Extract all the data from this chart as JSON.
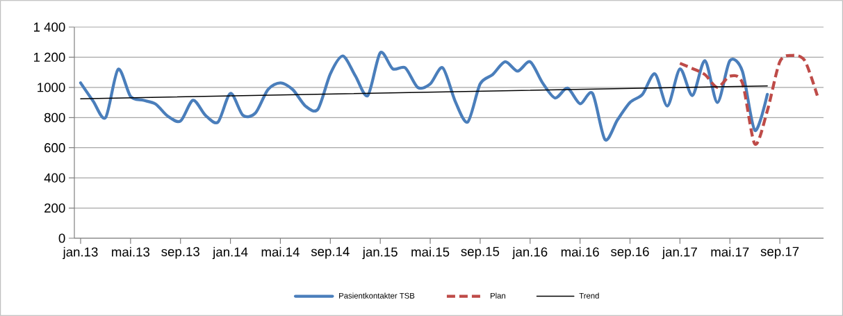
{
  "chart_data": {
    "type": "line",
    "categories": [
      "jan.13",
      null,
      null,
      null,
      "mai.13",
      null,
      null,
      null,
      "sep.13",
      null,
      null,
      null,
      "jan.14",
      null,
      null,
      null,
      "mai.14",
      null,
      null,
      null,
      "sep.14",
      null,
      null,
      null,
      "jan.15",
      null,
      null,
      null,
      "mai.15",
      null,
      null,
      null,
      "sep.15",
      null,
      null,
      null,
      "jan.16",
      null,
      null,
      null,
      "mai.16",
      null,
      null,
      null,
      "sep.16",
      null,
      null,
      null,
      "jan.17",
      null,
      null,
      null,
      "mai.17",
      null,
      null,
      null,
      "sep.17",
      null,
      null,
      null
    ],
    "series": [
      {
        "name": "Pasientkontakter TSB",
        "color": "#4a7ebb",
        "line_style": "solid",
        "values": [
          1030,
          910,
          800,
          1120,
          940,
          915,
          890,
          808,
          777,
          915,
          815,
          770,
          960,
          815,
          830,
          985,
          1030,
          985,
          877,
          855,
          1090,
          1208,
          1077,
          946,
          1230,
          1123,
          1130,
          1000,
          1023,
          1130,
          908,
          770,
          1023,
          1085,
          1170,
          1108,
          1170,
          1030,
          930,
          995,
          892,
          960,
          654,
          785,
          900,
          954,
          1090,
          877,
          1123,
          946,
          1177,
          900,
          1177,
          1108,
          715,
          954,
          null,
          null,
          null,
          null
        ]
      },
      {
        "name": "Plan",
        "color": "#be4b48",
        "line_style": "dashed",
        "values": [
          null,
          null,
          null,
          null,
          null,
          null,
          null,
          null,
          null,
          null,
          null,
          null,
          null,
          null,
          null,
          null,
          null,
          null,
          null,
          null,
          null,
          null,
          null,
          null,
          null,
          null,
          null,
          null,
          null,
          null,
          null,
          null,
          null,
          null,
          null,
          null,
          null,
          null,
          null,
          null,
          null,
          null,
          null,
          null,
          null,
          null,
          null,
          null,
          1160,
          1125,
          1085,
          1000,
          1075,
          1030,
          625,
          846,
          1170,
          1212,
          1177,
          946
        ]
      },
      {
        "name": "Trend",
        "color": "#000000",
        "line_style": "solid",
        "values": [
          925,
          null,
          null,
          null,
          null,
          null,
          null,
          null,
          null,
          null,
          null,
          null,
          null,
          null,
          null,
          null,
          null,
          null,
          null,
          null,
          null,
          null,
          null,
          null,
          null,
          null,
          null,
          null,
          null,
          null,
          null,
          null,
          null,
          null,
          null,
          null,
          null,
          null,
          null,
          null,
          null,
          null,
          null,
          null,
          null,
          null,
          null,
          null,
          null,
          null,
          null,
          null,
          null,
          null,
          null,
          1010,
          null,
          null,
          null,
          null
        ]
      }
    ],
    "ylim": [
      0,
      1400
    ],
    "yticks": [
      0,
      200,
      400,
      600,
      800,
      1000,
      {
        "value": 1200,
        "label": "1 200"
      },
      {
        "value": 1400,
        "label": "1 400"
      }
    ],
    "grid": "y",
    "legend": "bottom",
    "marker": "none"
  }
}
